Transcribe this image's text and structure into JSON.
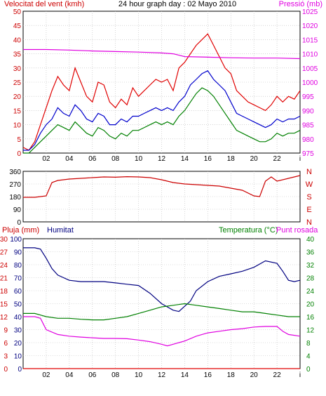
{
  "chart_data": [
    {
      "type": "line",
      "title": "24 hour graph day : 02 Mayo 2010",
      "left_axis_label": "Velocitat del vent (kmh)",
      "right_axis_label": "Pressió (mb)",
      "x_ticks": [
        "02",
        "04",
        "06",
        "08",
        "10",
        "12",
        "14",
        "16",
        "18",
        "20",
        "22",
        "i"
      ],
      "y_left_ticks": [
        "0",
        "5",
        "10",
        "15",
        "20",
        "25",
        "30",
        "35",
        "40",
        "45",
        "50"
      ],
      "y_left_range": [
        0,
        50
      ],
      "y_right_ticks": [
        "975",
        "980",
        "985",
        "990",
        "995",
        "1000",
        "1005",
        "1010",
        "1015",
        "1020",
        "1025"
      ],
      "y_right_range": [
        975,
        1025
      ],
      "grid": true,
      "series": [
        {
          "axis": "left",
          "color": "#e00000",
          "x": [
            0,
            0.5,
            1,
            1.5,
            2,
            2.5,
            3,
            3.5,
            4,
            4.5,
            5,
            5.5,
            6,
            6.5,
            7,
            7.5,
            8,
            8.5,
            9,
            9.5,
            10,
            10.5,
            11,
            11.5,
            12,
            12.5,
            13,
            13.5,
            14,
            14.5,
            15,
            15.5,
            16,
            16.5,
            17,
            17.5,
            18,
            18.5,
            19,
            19.5,
            20,
            20.5,
            21,
            21.5,
            22,
            22.5,
            23,
            23.5,
            24
          ],
          "values": [
            2,
            1,
            4,
            10,
            16,
            22,
            27,
            24,
            22,
            30,
            25,
            20,
            18,
            25,
            24,
            18,
            16,
            19,
            17,
            23,
            20,
            22,
            24,
            26,
            25,
            26,
            22,
            30,
            32,
            35,
            38,
            40,
            42,
            38,
            34,
            30,
            28,
            22,
            20,
            18,
            17,
            16,
            15,
            17,
            20,
            18,
            20,
            19,
            22
          ]
        },
        {
          "axis": "left",
          "color": "#0000cc",
          "x": [
            0,
            0.5,
            1,
            1.5,
            2,
            2.5,
            3,
            3.5,
            4,
            4.5,
            5,
            5.5,
            6,
            6.5,
            7,
            7.5,
            8,
            8.5,
            9,
            9.5,
            10,
            10.5,
            11,
            11.5,
            12,
            12.5,
            13,
            13.5,
            14,
            14.5,
            15,
            15.5,
            16,
            16.5,
            17,
            17.5,
            18,
            18.5,
            19,
            19.5,
            20,
            20.5,
            21,
            21.5,
            22,
            22.5,
            23,
            23.5,
            24
          ],
          "values": [
            1,
            1,
            3,
            7,
            10,
            12,
            16,
            14,
            13,
            17,
            15,
            12,
            11,
            14,
            13,
            10,
            10,
            12,
            11,
            13,
            13,
            14,
            15,
            16,
            15,
            16,
            15,
            18,
            20,
            24,
            26,
            28,
            29,
            26,
            24,
            22,
            18,
            14,
            13,
            12,
            11,
            10,
            9,
            10,
            12,
            11,
            12,
            12,
            13
          ]
        },
        {
          "axis": "left",
          "color": "#008000",
          "x": [
            0,
            0.5,
            1,
            1.5,
            2,
            2.5,
            3,
            3.5,
            4,
            4.5,
            5,
            5.5,
            6,
            6.5,
            7,
            7.5,
            8,
            8.5,
            9,
            9.5,
            10,
            10.5,
            11,
            11.5,
            12,
            12.5,
            13,
            13.5,
            14,
            14.5,
            15,
            15.5,
            16,
            16.5,
            17,
            17.5,
            18,
            18.5,
            19,
            19.5,
            20,
            20.5,
            21,
            21.5,
            22,
            22.5,
            23,
            23.5,
            24
          ],
          "values": [
            0,
            0,
            2,
            4,
            6,
            8,
            10,
            9,
            8,
            11,
            9,
            7,
            6,
            9,
            8,
            6,
            5,
            7,
            6,
            8,
            8,
            9,
            10,
            11,
            10,
            11,
            10,
            13,
            15,
            18,
            21,
            23,
            22,
            20,
            17,
            14,
            11,
            8,
            7,
            6,
            5,
            4,
            4,
            5,
            7,
            6,
            7,
            7,
            8
          ]
        },
        {
          "axis": "right",
          "color": "#e000e0",
          "x": [
            0,
            2,
            4,
            6,
            8,
            10,
            12,
            13,
            14,
            16,
            18,
            20,
            22,
            24
          ],
          "values": [
            1011.5,
            1011.5,
            1011.3,
            1011,
            1010.8,
            1010.6,
            1010.3,
            1010,
            1009,
            1008.8,
            1008.6,
            1008.5,
            1008.5,
            1008.3
          ]
        }
      ]
    },
    {
      "type": "line",
      "axis_label_letters": [
        "N",
        "W",
        "S",
        "E",
        "N"
      ],
      "y_ticks": [
        "0",
        "90",
        "180",
        "270",
        "360"
      ],
      "y_range": [
        0,
        360
      ],
      "grid": true,
      "series": [
        {
          "color": "#cc0000",
          "x": [
            0,
            0.5,
            1,
            1.5,
            2,
            2.5,
            3,
            4,
            5,
            6,
            7,
            8,
            9,
            10,
            11,
            12,
            13,
            14,
            15,
            16,
            17,
            18,
            19,
            20,
            20.5,
            21,
            21.5,
            22,
            23,
            24
          ],
          "values": [
            175,
            175,
            175,
            180,
            185,
            280,
            295,
            305,
            310,
            315,
            320,
            318,
            322,
            320,
            315,
            300,
            280,
            270,
            265,
            260,
            255,
            240,
            225,
            185,
            180,
            290,
            320,
            290,
            310,
            330
          ]
        }
      ]
    },
    {
      "type": "line",
      "left_axis_label_1": "Pluja (mm)",
      "left_axis_label_2": "Humitat",
      "right_axis_label_1": "Temperatura (°C)",
      "right_axis_label_2": "Punt rosada",
      "x_ticks": [
        "02",
        "04",
        "06",
        "08",
        "10",
        "12",
        "14",
        "16",
        "18",
        "20",
        "22",
        "i"
      ],
      "y_left_outer_ticks": [
        "0",
        "3",
        "6",
        "9",
        "12",
        "15",
        "18",
        "21",
        "24",
        "27",
        "30"
      ],
      "y_left_outer_range": [
        0,
        30
      ],
      "y_left_inner_ticks": [
        "0",
        "10",
        "20",
        "30",
        "40",
        "50",
        "60",
        "70",
        "80",
        "90",
        "100"
      ],
      "y_left_inner_range": [
        0,
        100
      ],
      "y_right_ticks": [
        "0",
        "4",
        "8",
        "12",
        "16",
        "20",
        "24",
        "28",
        "32",
        "36",
        "40"
      ],
      "y_right_range": [
        0,
        40
      ],
      "grid": true,
      "series": [
        {
          "name": "Humitat",
          "axis": "left_inner",
          "color": "#000080",
          "x": [
            0,
            1,
            1.5,
            2,
            2.5,
            3,
            4,
            5,
            6,
            7,
            8,
            9,
            10,
            11,
            12,
            13,
            13.5,
            14,
            14.5,
            15,
            16,
            17,
            18,
            19,
            20,
            21,
            22,
            22.5,
            23,
            23.5,
            24
          ],
          "values": [
            93,
            93,
            92,
            85,
            77,
            72,
            68,
            67,
            67,
            67,
            66,
            65,
            64,
            58,
            50,
            45,
            44,
            48,
            52,
            60,
            67,
            71,
            73,
            75,
            78,
            83,
            81,
            75,
            68,
            67,
            68
          ]
        },
        {
          "name": "Temperatura",
          "axis": "right",
          "color": "#008000",
          "x": [
            0,
            1,
            1.5,
            2,
            3,
            4,
            5,
            6,
            7,
            8,
            9,
            10,
            11,
            12,
            13,
            14,
            15,
            16,
            17,
            18,
            19,
            20,
            21,
            22,
            23,
            24
          ],
          "values": [
            17,
            17,
            16.5,
            16,
            15.5,
            15.5,
            15.2,
            15,
            15,
            15.5,
            16,
            17,
            18,
            19,
            19.5,
            20,
            19.5,
            19,
            18.5,
            18,
            17.5,
            17.5,
            17,
            16.5,
            16,
            16
          ]
        },
        {
          "name": "Punt rosada",
          "axis": "right",
          "color": "#e000e0",
          "x": [
            0,
            1,
            1.5,
            2,
            3,
            4,
            5,
            6,
            7,
            8,
            9,
            10,
            11,
            12,
            12.5,
            13,
            13.5,
            14,
            15,
            16,
            17,
            18,
            19,
            20,
            21,
            22,
            22.5,
            23,
            24
          ],
          "values": [
            16,
            16,
            15.5,
            12,
            10.5,
            10,
            9.7,
            9.5,
            9.3,
            9.3,
            9.2,
            8.8,
            8.3,
            7.5,
            7,
            7.5,
            8,
            8.5,
            10,
            11,
            11.5,
            12,
            12.3,
            12.8,
            13,
            13,
            11.5,
            10.5,
            10
          ]
        },
        {
          "name": "Pluja",
          "axis": "left_outer",
          "color": "#e00000",
          "x": [
            0,
            24
          ],
          "values": [
            0,
            0
          ]
        }
      ]
    }
  ]
}
